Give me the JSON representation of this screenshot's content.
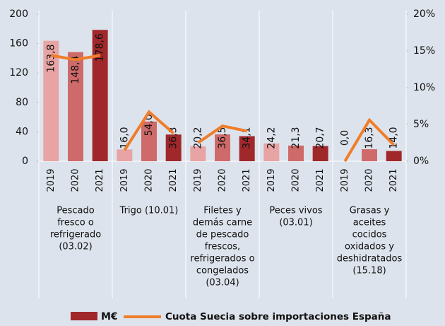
{
  "chart_data": {
    "type": "bar",
    "categories": [
      "2019",
      "2020",
      "2021",
      "2019",
      "2020",
      "2021",
      "2019",
      "2020",
      "2021",
      "2019",
      "2020",
      "2021",
      "2019",
      "2020",
      "2021"
    ],
    "groups": [
      {
        "lines": [
          "Pescado",
          "fresco o",
          "refrigerado",
          "(03.02)"
        ]
      },
      {
        "lines": [
          "Trigo (10.01)"
        ]
      },
      {
        "lines": [
          "Filetes y",
          "demás carne",
          "de pescado",
          "frescos,",
          "refrigerados o",
          "congelados",
          "(03.04)"
        ]
      },
      {
        "lines": [
          "Peces vivos",
          "(03.01)"
        ]
      },
      {
        "lines": [
          "Grasas y",
          "aceites",
          "cocidos",
          "oxidados y",
          "deshidratados",
          "(15.18)"
        ]
      }
    ],
    "year_colors": [
      "#e8a4a4",
      "#cf6a6a",
      "#a0282b"
    ],
    "series": [
      {
        "name": "M€",
        "color": "#a0282b",
        "values": [
          163.8,
          148.4,
          178.6,
          16.0,
          54.0,
          36.3,
          20.2,
          36.5,
          34.1,
          24.2,
          21.3,
          20.7,
          0.0,
          16.3,
          14.0
        ],
        "value_labels": [
          "163,8",
          "148,4",
          "178,6",
          "16,0",
          "54,0",
          "36,3",
          "20,2",
          "36,5",
          "34,1",
          "24,2",
          "21,3",
          "20,7",
          "0,0",
          "16,3",
          "14,0"
        ]
      },
      {
        "name": "Cuota Suecia sobre importaciones España",
        "color": "#f07d2a",
        "axis": "y2",
        "values": [
          14.4,
          13.8,
          14.4,
          1.5,
          6.7,
          3.8,
          2.5,
          4.8,
          4.1,
          null,
          null,
          null,
          0.0,
          5.6,
          2.2
        ]
      }
    ],
    "ylim": [
      0,
      200
    ],
    "yticks": [
      0,
      40,
      80,
      120,
      160,
      200
    ],
    "y2lim": [
      0,
      20
    ],
    "y2ticks": [
      {
        "value": 0,
        "label": "0%"
      },
      {
        "value": 5,
        "label": "5%"
      },
      {
        "value": 10,
        "label": "10%"
      },
      {
        "value": 15,
        "label": "15%"
      },
      {
        "value": 20,
        "label": "20%"
      }
    ]
  }
}
